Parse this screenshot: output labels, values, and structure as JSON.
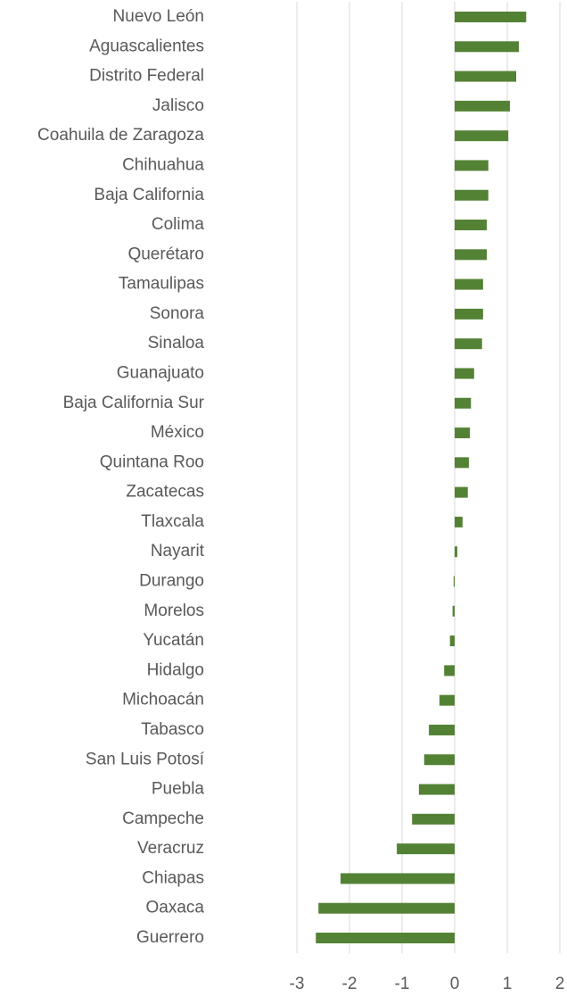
{
  "chart_data": {
    "type": "bar",
    "orientation": "horizontal",
    "categories": [
      "Nuevo León",
      "Aguascalientes",
      "Distrito Federal",
      "Jalisco",
      "Coahuila de Zaragoza",
      "Chihuahua",
      "Baja California",
      "Colima",
      "Querétaro",
      "Tamaulipas",
      "Sonora",
      "Sinaloa",
      "Guanajuato",
      "Baja California Sur",
      "México",
      "Quintana Roo",
      "Zacatecas",
      "Tlaxcala",
      "Nayarit",
      "Durango",
      "Morelos",
      "Yucatán",
      "Hidalgo",
      "Michoacán",
      "Tabasco",
      "San Luis Potosí",
      "Puebla",
      "Campeche",
      "Veracruz",
      "Chiapas",
      "Oaxaca",
      "Guerrero"
    ],
    "values": [
      1.36,
      1.22,
      1.17,
      1.05,
      1.02,
      0.64,
      0.64,
      0.61,
      0.61,
      0.54,
      0.54,
      0.52,
      0.37,
      0.31,
      0.29,
      0.27,
      0.25,
      0.15,
      0.05,
      -0.02,
      -0.04,
      -0.09,
      -0.2,
      -0.29,
      -0.49,
      -0.58,
      -0.68,
      -0.81,
      -1.1,
      -2.17,
      -2.59,
      -2.64
    ],
    "color": "#548235",
    "xlim": [
      -3,
      2
    ],
    "xticks": [
      -3,
      -2,
      -1,
      0,
      1,
      2
    ],
    "grid": true
  }
}
